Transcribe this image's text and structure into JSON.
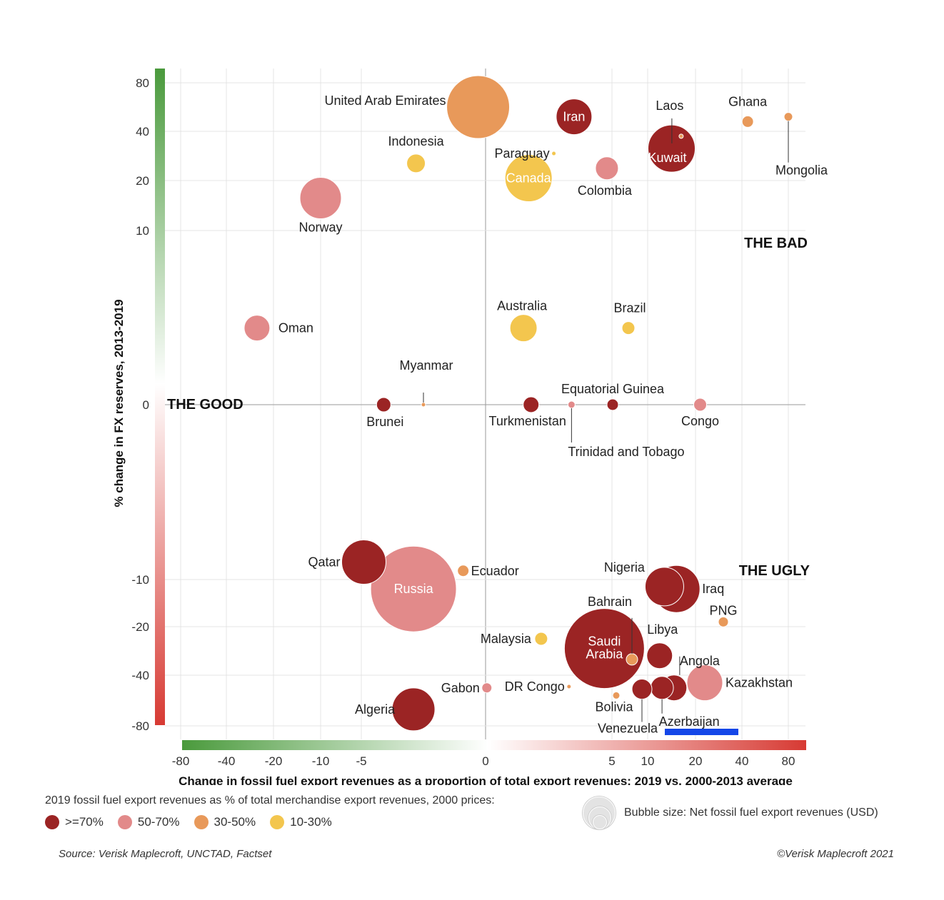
{
  "chart_data": {
    "type": "scatter",
    "subtype": "bubble",
    "xlabel": "Change in fossil fuel export revenues as a proportion of total export revenues: 2019 vs. 2000-2013 average",
    "ylabel": "% change in FX reserves, 2013-2019",
    "x_ticks": [
      "-80",
      "-40",
      "-20",
      "-10",
      "-5",
      "0",
      "5",
      "10",
      "20",
      "40",
      "80"
    ],
    "y_ticks": [
      "80",
      "40",
      "20",
      "10",
      "0",
      "-10",
      "-20",
      "-40",
      "-80"
    ],
    "x_scale": "symmetric-log",
    "y_scale": "symmetric-log",
    "grid": true,
    "quadrant_labels": {
      "good": "THE GOOD",
      "bad": "THE BAD",
      "ugly": "THE UGLY"
    },
    "legend_title": "2019 fossil fuel export revenues as % of total merchandise export revenues, 2000 prices:",
    "legend": [
      {
        "key": "g70",
        "label": ">=70%",
        "color": "#9b2424"
      },
      {
        "key": "g50",
        "label": "50-70%",
        "color": "#e28a8a"
      },
      {
        "key": "g30",
        "label": "30-50%",
        "color": "#e8995a"
      },
      {
        "key": "g10",
        "label": "10-30%",
        "color": "#f3c64e"
      }
    ],
    "size_legend": "Bubble size: Net fossil fuel export revenues (USD)",
    "points": [
      {
        "name": "United Arab Emirates",
        "x": -0.3,
        "y": 60,
        "group": "g30",
        "size": 44
      },
      {
        "name": "Iran",
        "x": 3.5,
        "y": 52,
        "group": "g70",
        "size": 25
      },
      {
        "name": "Ghana",
        "x": 45,
        "y": 48,
        "group": "g30",
        "size": 8
      },
      {
        "name": "Mongolia",
        "x": 80,
        "y": 52,
        "group": "g30",
        "size": 6
      },
      {
        "name": "Laos",
        "x": 17,
        "y": 38,
        "group": "g30",
        "size": 3
      },
      {
        "name": "Kuwait",
        "x": 15,
        "y": 33,
        "group": "g70",
        "size": 33
      },
      {
        "name": "Indonesia",
        "x": -2.8,
        "y": 27,
        "group": "g10",
        "size": 13
      },
      {
        "name": "Paraguay",
        "x": 2.7,
        "y": 31,
        "group": "g10",
        "size": 3
      },
      {
        "name": "Canada",
        "x": 1.7,
        "y": 21,
        "group": "g10",
        "size": 33
      },
      {
        "name": "Colombia",
        "x": 4.8,
        "y": 25,
        "group": "g50",
        "size": 16
      },
      {
        "name": "Norway",
        "x": -10,
        "y": 16.5,
        "group": "g50",
        "size": 29
      },
      {
        "name": "Australia",
        "x": 1.5,
        "y": 4.4,
        "group": "g10",
        "size": 19
      },
      {
        "name": "Brazil",
        "x": 7.3,
        "y": 4.4,
        "group": "g10",
        "size": 9
      },
      {
        "name": "Oman",
        "x": -27,
        "y": 4.4,
        "group": "g50",
        "size": 18
      },
      {
        "name": "Myanmar",
        "x": -2.5,
        "y": 0,
        "group": "g30",
        "size": 3
      },
      {
        "name": "Brunei",
        "x": -4.1,
        "y": 0,
        "group": "g70",
        "size": 10
      },
      {
        "name": "Turkmenistan",
        "x": 1.8,
        "y": 0,
        "group": "g70",
        "size": 11
      },
      {
        "name": "Trinidad and Tobago",
        "x": 3.4,
        "y": 0,
        "group": "g50",
        "size": 5
      },
      {
        "name": "Equatorial Guinea",
        "x": 5.1,
        "y": 0,
        "group": "g70",
        "size": 8
      },
      {
        "name": "Congo",
        "x": 22,
        "y": 0,
        "group": "g50",
        "size": 9
      },
      {
        "name": "Qatar",
        "x": -4.9,
        "y": -9,
        "group": "g70",
        "size": 31
      },
      {
        "name": "Russia",
        "x": -2.9,
        "y": -12,
        "group": "g50",
        "size": 60
      },
      {
        "name": "Ecuador",
        "x": -0.9,
        "y": -9.5,
        "group": "g30",
        "size": 8
      },
      {
        "name": "Nigeria",
        "x": 13.5,
        "y": -11.5,
        "group": "g70",
        "size": 27
      },
      {
        "name": "Iraq",
        "x": 16,
        "y": -12,
        "group": "g70",
        "size": 33
      },
      {
        "name": "PNG",
        "x": 32,
        "y": -19,
        "group": "g30",
        "size": 7
      },
      {
        "name": "Bahrain",
        "x": 7.8,
        "y": -33.5,
        "group": "g30",
        "size": 8
      },
      {
        "name": "Saudi Arabia",
        "x": 4.7,
        "y": -29,
        "group": "g70",
        "size": 56
      },
      {
        "name": "Malaysia",
        "x": 2.2,
        "y": -25,
        "group": "g10",
        "size": 9
      },
      {
        "name": "Libya",
        "x": 12.5,
        "y": -32,
        "group": "g70",
        "size": 18
      },
      {
        "name": "Angola",
        "x": 15.5,
        "y": -50,
        "group": "g70",
        "size": 18
      },
      {
        "name": "Kazakhstan",
        "x": 24,
        "y": -46,
        "group": "g50",
        "size": 25
      },
      {
        "name": "Gabon",
        "x": 0.05,
        "y": -50,
        "group": "g50",
        "size": 7
      },
      {
        "name": "DR Congo",
        "x": 3.3,
        "y": -49,
        "group": "g30",
        "size": 3
      },
      {
        "name": "Bolivia",
        "x": 5.6,
        "y": -56,
        "group": "g30",
        "size": 5
      },
      {
        "name": "Venezuela",
        "x": 9.2,
        "y": -51,
        "group": "g70",
        "size": 14
      },
      {
        "name": "Azerbaijan",
        "x": 13,
        "y": -50,
        "group": "g70",
        "size": 16
      },
      {
        "name": "Algeria",
        "x": -2.9,
        "y": -67,
        "group": "g70",
        "size": 30
      }
    ]
  },
  "footer": {
    "source": "Source: Verisk Maplecroft, UNCTAD, Factset",
    "copyright": "©Verisk Maplecroft 2021"
  }
}
